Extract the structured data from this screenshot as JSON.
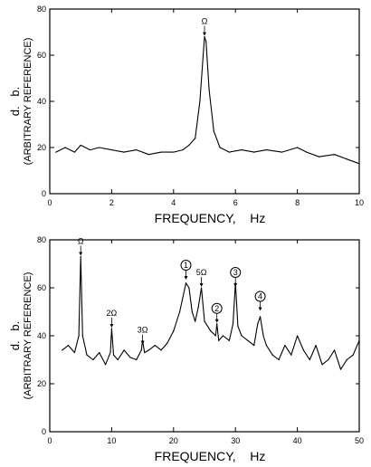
{
  "chart_data": [
    {
      "type": "line",
      "xlabel": "FREQUENCY,    Hz",
      "ylabel": "d.   b.",
      "ylabel_sub": "(ARBITRARY REFERENCE)",
      "xlim": [
        0,
        10
      ],
      "ylim": [
        0,
        80
      ],
      "xticks": [
        0,
        2,
        4,
        6,
        8,
        10
      ],
      "yticks": [
        0,
        20,
        40,
        60,
        80
      ],
      "grid": false,
      "annotations": [
        {
          "label": "Ω",
          "x": 5.0,
          "y": 68
        }
      ],
      "series": [
        {
          "x": [
            0.2,
            0.5,
            0.8,
            1.0,
            1.3,
            1.6,
            2.0,
            2.4,
            2.8,
            3.2,
            3.6,
            4.0,
            4.3,
            4.5,
            4.7,
            4.85,
            5.0,
            5.05,
            5.15,
            5.3,
            5.5,
            5.8,
            6.2,
            6.6,
            7.0,
            7.5,
            8.0,
            8.3,
            8.7,
            9.2,
            9.6,
            10.0
          ],
          "y": [
            18,
            20,
            18,
            21,
            19,
            20,
            19,
            18,
            19,
            17,
            18,
            18,
            19,
            21,
            24,
            40,
            68,
            66,
            45,
            27,
            20,
            18,
            19,
            18,
            19,
            18,
            20,
            18,
            16,
            17,
            15,
            13
          ]
        }
      ]
    },
    {
      "type": "line",
      "xlabel": "FREQUENCY,    Hz",
      "ylabel": "d.   b.",
      "ylabel_sub": "(ARBITRARY REFERENCE)",
      "xlim": [
        0,
        50
      ],
      "ylim": [
        0,
        80
      ],
      "xticks": [
        0,
        10,
        20,
        30,
        40,
        50
      ],
      "yticks": [
        0,
        20,
        40,
        60,
        80
      ],
      "grid": false,
      "annotations": [
        {
          "label": "Ω",
          "x": 5,
          "y": 73
        },
        {
          "label": "2Ω",
          "x": 10,
          "y": 43
        },
        {
          "label": "3Ω",
          "x": 15,
          "y": 36
        },
        {
          "label": "1",
          "x": 22,
          "y": 63,
          "circled": true
        },
        {
          "label": "5Ω",
          "x": 24.5,
          "y": 60
        },
        {
          "label": "2",
          "x": 27,
          "y": 45,
          "circled": true
        },
        {
          "label": "3",
          "x": 30,
          "y": 60,
          "circled": true
        },
        {
          "label": "4",
          "x": 34,
          "y": 50,
          "circled": true
        }
      ],
      "series": [
        {
          "x": [
            2,
            3,
            4,
            4.7,
            5,
            5.3,
            6,
            7,
            8,
            9,
            9.8,
            10,
            10.3,
            11,
            12,
            13,
            14,
            14.8,
            15,
            15.3,
            16,
            17,
            18,
            19,
            20,
            21,
            22,
            22.5,
            23,
            23.5,
            24,
            24.5,
            25,
            26,
            26.8,
            27,
            27.3,
            28,
            29,
            29.6,
            30,
            30.4,
            31,
            32,
            33,
            33.6,
            34,
            34.5,
            35,
            36,
            37,
            38,
            39,
            40,
            41,
            42,
            43,
            44,
            45,
            46,
            47,
            48,
            49,
            50
          ],
          "y": [
            34,
            36,
            33,
            40,
            73,
            40,
            32,
            30,
            33,
            28,
            33,
            43,
            32,
            30,
            34,
            31,
            30,
            34,
            38,
            33,
            34,
            36,
            34,
            37,
            42,
            50,
            62,
            60,
            50,
            46,
            52,
            60,
            46,
            42,
            40,
            45,
            38,
            40,
            38,
            45,
            62,
            44,
            40,
            38,
            36,
            45,
            48,
            40,
            36,
            32,
            30,
            36,
            32,
            40,
            34,
            30,
            36,
            28,
            30,
            34,
            26,
            30,
            32,
            38
          ]
        }
      ]
    }
  ]
}
